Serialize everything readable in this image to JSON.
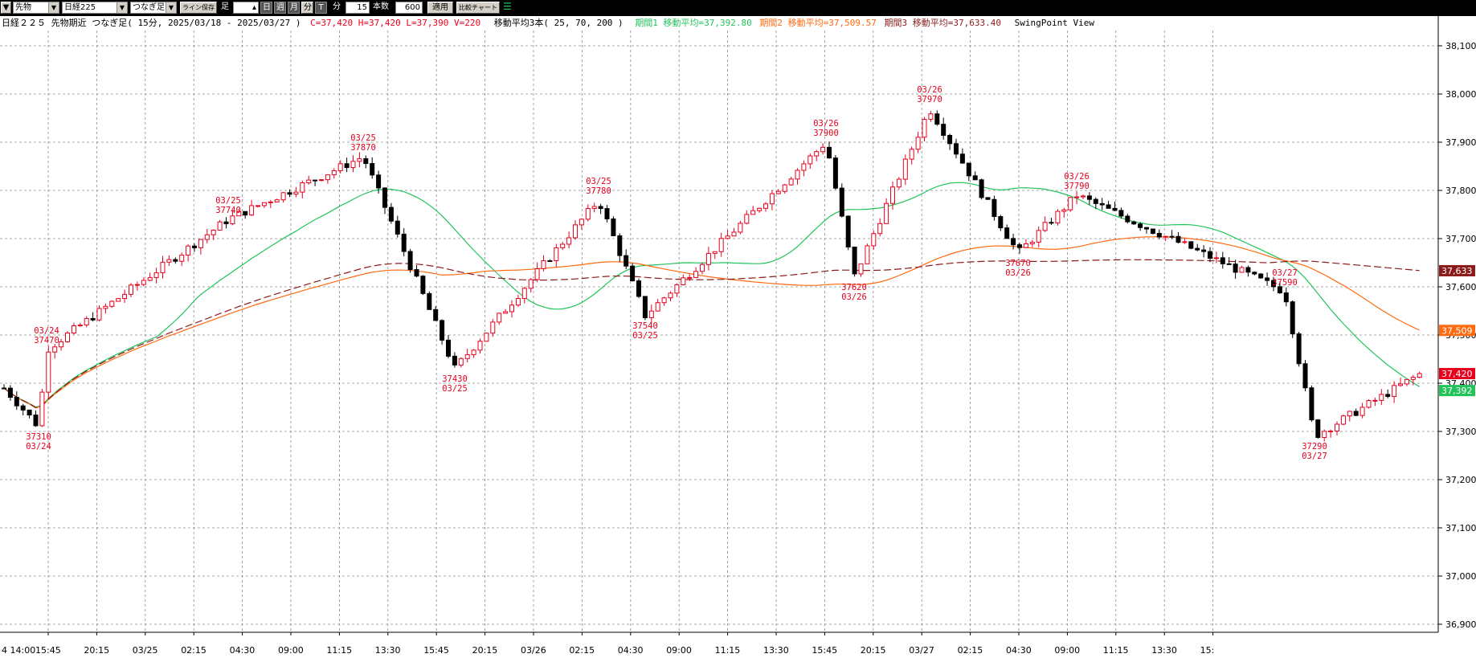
{
  "toolbar": {
    "category": "先物",
    "instrument": "日経225",
    "chart_mode": "つなぎ足",
    "save_line": "ライン保存",
    "bar_label": "足",
    "day": "日",
    "week": "週",
    "month": "月",
    "minute_btn": "分",
    "tick": "T",
    "minute_label": "分",
    "minute_value": "15",
    "count_label": "本数",
    "count_value": "600",
    "apply": "適用",
    "compare": "比較チャート"
  },
  "info": {
    "instrument": "日経２２５ 先物期近 つなぎ足( 15分, 2025/03/18 - 2025/03/27 )",
    "ohlcv": "C=37,420 H=37,420 L=37,390 V=220",
    "ma_title": "移動平均3本( 25, 70, 200 )",
    "ma1": "期間1 移動平均=37,392.80",
    "ma2": "期間2 移動平均=37,509.57",
    "ma3": "期間3 移動平均=37,633.40",
    "view": "SwingPoint View"
  },
  "chart_data": {
    "type": "candlestick",
    "title": "日経２２５ 先物期近 つなぎ足( 15分, 2025/03/18 - 2025/03/27 )",
    "interval": "15分",
    "period": [
      "2025/03/18",
      "2025/03/27"
    ],
    "y_axis": {
      "ticks": [
        36900,
        37000,
        37100,
        37200,
        37300,
        37400,
        37500,
        37600,
        37700,
        37800,
        37900,
        38000,
        38100
      ],
      "tick_labels": [
        "36,900",
        "37,000",
        "37,100",
        "37,200",
        "37,300",
        "37,400",
        "37,500",
        "37,600",
        "37,700",
        "37,800",
        "37,900",
        "38,000",
        "38,100"
      ],
      "ylim": [
        36860,
        38150
      ]
    },
    "x_axis": {
      "tick_labels": [
        "4 14:00",
        "15:45",
        "20:15",
        "03/25",
        "02:15",
        "04:30",
        "09:00",
        "11:15",
        "13:30",
        "15:45",
        "20:15",
        "03/26",
        "02:15",
        "04:30",
        "09:00",
        "11:15",
        "13:30",
        "15:45",
        "20:15",
        "03/27",
        "02:15",
        "04:30",
        "09:00",
        "11:15",
        "13:30",
        "15:"
      ]
    },
    "last": {
      "close": 37420,
      "high": 37420,
      "low": 37390,
      "volume": 220
    },
    "moving_averages": [
      {
        "name": "期間1 移動平均",
        "period": 25,
        "last": 37392.8,
        "last_label": "37,392",
        "color": "#22c45a"
      },
      {
        "name": "期間2 移動平均",
        "period": 70,
        "last": 37509.57,
        "last_label": "37,509",
        "color": "#ff6a10"
      },
      {
        "name": "期間3 移動平均",
        "period": 200,
        "last": 37633.4,
        "last_label": "37,633",
        "color": "#8b1a1a"
      }
    ],
    "price_tag": {
      "value": 37420,
      "label": "37,420",
      "color": "#e8001c"
    },
    "swing_points": [
      {
        "date": "03/24",
        "price": 37310,
        "type": "low"
      },
      {
        "date": "03/24",
        "price": 37470,
        "type": "high"
      },
      {
        "date": "03/25",
        "price": 37740,
        "type": "high"
      },
      {
        "date": "03/25",
        "price": 37870,
        "type": "high"
      },
      {
        "date": "03/25",
        "price": 37430,
        "type": "low"
      },
      {
        "date": "03/25",
        "price": 37780,
        "type": "high"
      },
      {
        "date": "03/25",
        "price": 37540,
        "type": "low"
      },
      {
        "date": "03/26",
        "price": 37900,
        "type": "high"
      },
      {
        "date": "03/26",
        "price": 37620,
        "type": "low"
      },
      {
        "date": "03/26",
        "price": 37970,
        "type": "high"
      },
      {
        "date": "03/26",
        "price": 37670,
        "type": "low"
      },
      {
        "date": "03/26",
        "price": 37790,
        "type": "high"
      },
      {
        "date": "03/27",
        "price": 37590,
        "type": "high"
      },
      {
        "date": "03/27",
        "price": 37290,
        "type": "low"
      }
    ],
    "grid": true,
    "colors": {
      "up": "#e8001c",
      "down": "#000000"
    }
  }
}
